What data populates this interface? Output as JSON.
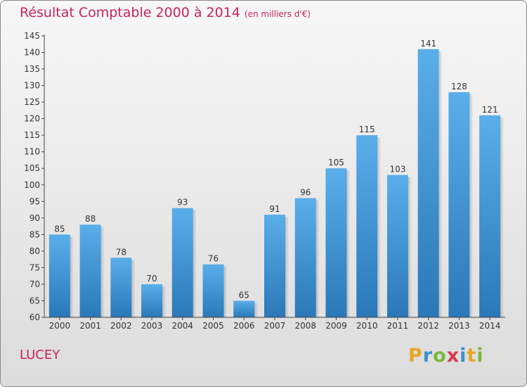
{
  "chart_data": {
    "type": "bar",
    "title": "Résultat Comptable 2000 à 2014",
    "subtitle": "(en milliers d'€)",
    "xlabel": "",
    "ylabel": "",
    "categories": [
      "2000",
      "2001",
      "2002",
      "2003",
      "2004",
      "2005",
      "2006",
      "2007",
      "2008",
      "2009",
      "2010",
      "2011",
      "2012",
      "2013",
      "2014"
    ],
    "values": [
      85,
      88,
      78,
      70,
      93,
      76,
      65,
      91,
      96,
      105,
      115,
      103,
      141,
      128,
      121
    ],
    "ylim": [
      60,
      145
    ],
    "yticks": [
      60,
      65,
      70,
      75,
      80,
      85,
      90,
      95,
      100,
      105,
      110,
      115,
      120,
      125,
      130,
      135,
      140,
      145
    ],
    "grid": false,
    "bar_color": "#3a8fd6"
  },
  "footer": {
    "commune": "LUCEY",
    "brand_letters": [
      {
        "ch": "P",
        "color": "#e8a623"
      },
      {
        "ch": "r",
        "color": "#3b8fd0"
      },
      {
        "ch": "o",
        "color": "#7bb83a"
      },
      {
        "ch": "x",
        "color": "#d8394a"
      },
      {
        "ch": "i",
        "color": "#3b8fd0"
      },
      {
        "ch": "t",
        "color": "#e8a623"
      },
      {
        "ch": "i",
        "color": "#7bb83a"
      }
    ]
  }
}
